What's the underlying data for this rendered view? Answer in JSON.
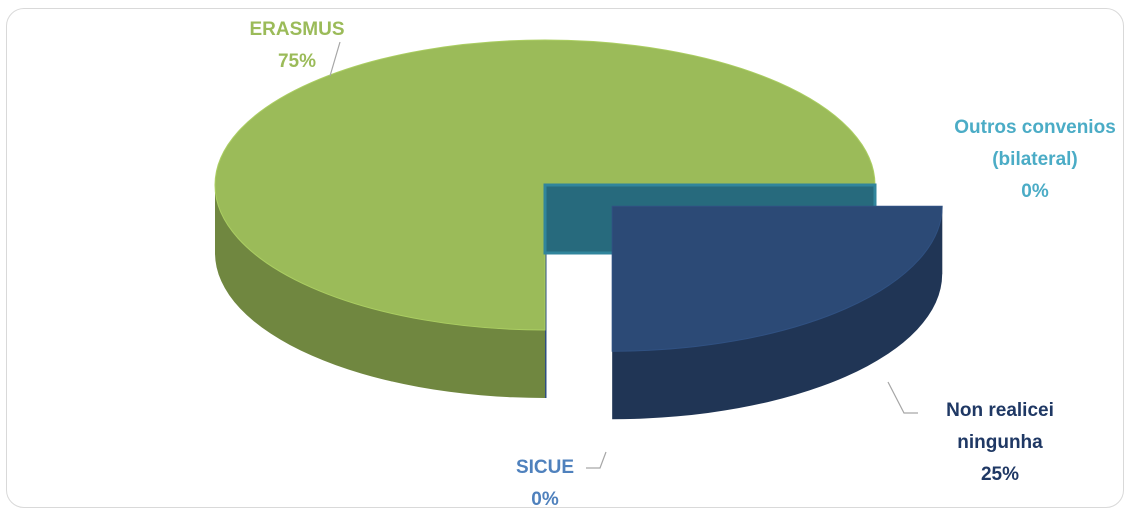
{
  "chart_data": {
    "type": "pie",
    "categories": [
      "Non realicei ningunha",
      "SICUE",
      "ERASMUS",
      "Outros convenios (bilateral)"
    ],
    "values": [
      25,
      0,
      75,
      0
    ],
    "value_labels": [
      "25%",
      "0%",
      "75%",
      "0%"
    ],
    "colors": [
      "#2c4a76",
      "#2e4d80",
      "#9bbb59",
      "#31859c"
    ]
  }
}
